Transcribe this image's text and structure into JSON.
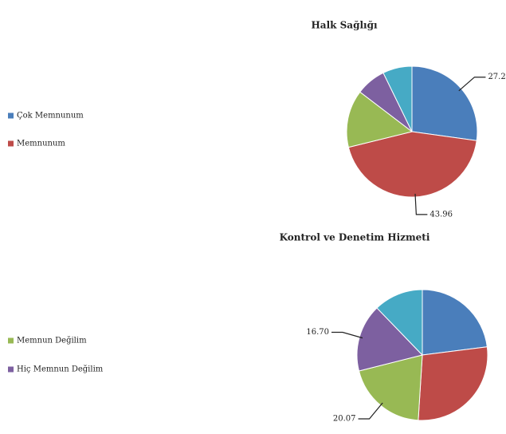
{
  "chart_data": [
    {
      "type": "pie",
      "title": "Halk Sağlığı",
      "categories": [
        "Çok Memnunum",
        "Memnunum",
        "Memnun Değilim",
        "Hiç Memnun Değilim",
        null
      ],
      "values": [
        27.2,
        43.96,
        14.2,
        7.4,
        7.24
      ],
      "value_labels": [
        "27.2",
        "43.96",
        null,
        null,
        null
      ],
      "colors": [
        "#4a7ebb",
        "#be4b48",
        "#98b954",
        "#7d60a0",
        "#46aac5"
      ]
    },
    {
      "type": "pie",
      "title": "Kontrol ve Denetim Hizmeti",
      "categories": [
        "Çok Memnunum",
        "Memnunum",
        "Memnun Değilim",
        "Hiç Memnun Değilim",
        null
      ],
      "values": [
        23,
        28,
        20.07,
        16.7,
        12.23
      ],
      "value_labels": [
        null,
        null,
        "20.07",
        "16.70",
        null
      ],
      "colors": [
        "#4a7ebb",
        "#be4b48",
        "#98b954",
        "#7d60a0",
        "#46aac5"
      ]
    }
  ]
}
